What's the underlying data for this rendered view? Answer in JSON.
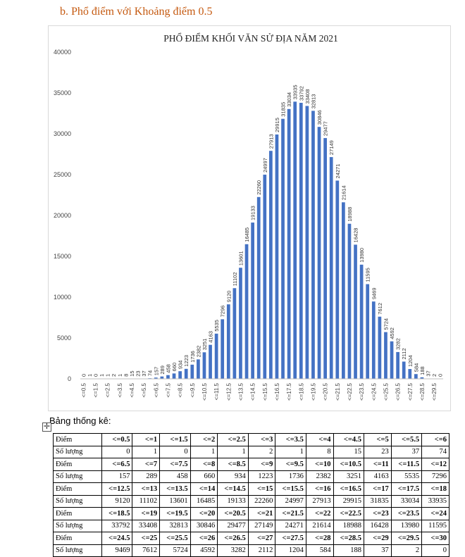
{
  "heading": "b.  Phổ điểm với Khoảng điểm 0.5",
  "table_label": "Bảng thống kê:",
  "move_handle_glyph": "✛",
  "table": {
    "row_label_score": "Điểm",
    "row_label_count": "Số lượng"
  },
  "colors": {
    "bar": "#4472c4",
    "heading": "#c55a11",
    "grid": "#d9d9d9"
  },
  "chart_data": {
    "type": "bar",
    "title": "PHỔ ĐIỂM KHỐI VĂN SỬ ĐỊA NĂM 2021",
    "xlabel": "",
    "ylabel": "",
    "ylim": [
      0,
      40000
    ],
    "yticks": [
      0,
      5000,
      10000,
      15000,
      20000,
      25000,
      30000,
      35000,
      40000
    ],
    "grid": false,
    "legend": "none",
    "categories": [
      "<=0.5",
      "<=1",
      "<=1.5",
      "<=2",
      "<=2.5",
      "<=3",
      "<=3.5",
      "<=4",
      "<=4.5",
      "<=5",
      "<=5.5",
      "<=6",
      "<=6.5",
      "<=7",
      "<=7.5",
      "<=8",
      "<=8.5",
      "<=9",
      "<=9.5",
      "<=10",
      "<=10.5",
      "<=11",
      "<=11.5",
      "<=12",
      "<=12.5",
      "<=13",
      "<=13.5",
      "<=14",
      "<=14.5",
      "<=15",
      "<=15.5",
      "<=16",
      "<=16.5",
      "<=17",
      "<=17.5",
      "<=18",
      "<=18.5",
      "<=19",
      "<=19.5",
      "<=20",
      "<=20.5",
      "<=21",
      "<=21.5",
      "<=22",
      "<=22.5",
      "<=23",
      "<=23.5",
      "<=24",
      "<=24.5",
      "<=25",
      "<=25.5",
      "<=26",
      "<=26.5",
      "<=27",
      "<=27.5",
      "<=28",
      "<=28.5",
      "<=29",
      "<=29.5",
      "<=30"
    ],
    "values": [
      0,
      1,
      0,
      1,
      1,
      2,
      1,
      8,
      15,
      23,
      37,
      74,
      157,
      289,
      458,
      660,
      934,
      1223,
      1736,
      2382,
      3251,
      4163,
      5535,
      7296,
      9120,
      11102,
      13601,
      16485,
      19133,
      22260,
      24997,
      27913,
      29915,
      31835,
      33034,
      33935,
      33792,
      33408,
      32813,
      30846,
      29477,
      27149,
      24271,
      21614,
      18988,
      16428,
      13980,
      11595,
      9469,
      7612,
      5724,
      4592,
      3282,
      2112,
      1204,
      584,
      188,
      37,
      2,
      0
    ]
  }
}
